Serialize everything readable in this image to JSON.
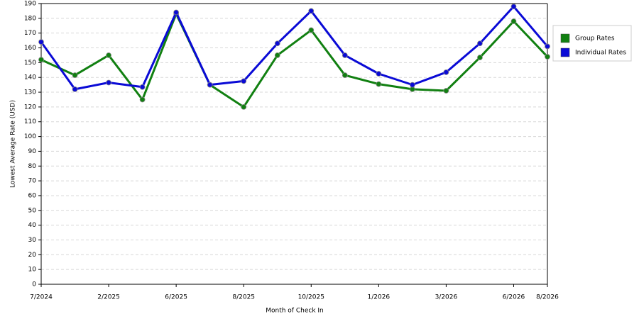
{
  "chart_data": {
    "type": "line",
    "x_label": "Month of Check In",
    "y_label": "Lowest Average Rate (USD)",
    "categories": [
      "7/2024",
      null,
      "2/2025",
      null,
      "6/2025",
      null,
      "8/2025",
      null,
      "10/2025",
      null,
      "1/2026",
      null,
      "3/2026",
      null,
      "6/2026",
      "8/2026"
    ],
    "series": [
      {
        "name": "Group Rates",
        "color": "#118011",
        "values": [
          152,
          141.5,
          155,
          125,
          183,
          135,
          120,
          155,
          172,
          141.5,
          135.5,
          132,
          131,
          153.5,
          178,
          154
        ]
      },
      {
        "name": "Individual Rates",
        "color": "#0a0ad6",
        "values": [
          164,
          132,
          136.5,
          133.5,
          184,
          135,
          137.5,
          163,
          185,
          155,
          142.5,
          135,
          143.5,
          163,
          188,
          161
        ]
      }
    ],
    "ylim": [
      0,
      190
    ],
    "yticks": [
      0,
      10,
      20,
      30,
      40,
      50,
      60,
      70,
      80,
      90,
      100,
      110,
      120,
      130,
      140,
      150,
      160,
      170,
      180,
      190
    ],
    "grid": true,
    "legend": "right"
  }
}
